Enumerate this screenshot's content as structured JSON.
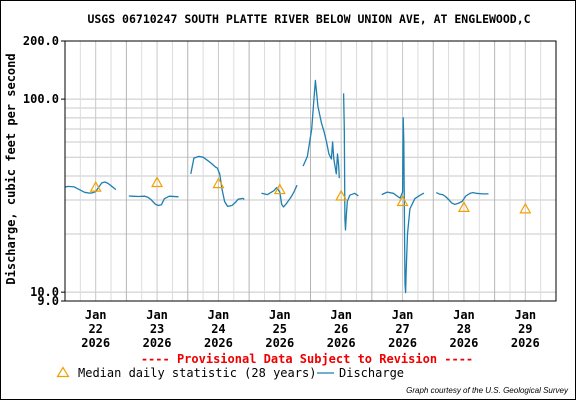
{
  "chart_data": {
    "type": "line",
    "title": "USGS 06710247 SOUTH PLATTE RIVER BELOW UNION AVE, AT ENGLEWOOD,C",
    "ylabel": "Discharge, cubic feet per second",
    "xlabel": "",
    "yscale": "log",
    "ylim": [
      9.0,
      200.0
    ],
    "y_tick_labels": [
      {
        "value": 200.0,
        "label": "200.0"
      },
      {
        "value": 100.0,
        "label": "100.0"
      },
      {
        "value": 10.0,
        "label": "10.0"
      },
      {
        "value": 9.0,
        "label": "9.0"
      }
    ],
    "xlim_days": [
      21.5,
      29.5
    ],
    "x_tick_labels": [
      {
        "day": 22,
        "lines": [
          "Jan",
          "22",
          "2026"
        ]
      },
      {
        "day": 23,
        "lines": [
          "Jan",
          "23",
          "2026"
        ]
      },
      {
        "day": 24,
        "lines": [
          "Jan",
          "24",
          "2026"
        ]
      },
      {
        "day": 25,
        "lines": [
          "Jan",
          "25",
          "2026"
        ]
      },
      {
        "day": 26,
        "lines": [
          "Jan",
          "26",
          "2026"
        ]
      },
      {
        "day": 27,
        "lines": [
          "Jan",
          "27",
          "2026"
        ]
      },
      {
        "day": 28,
        "lines": [
          "Jan",
          "28",
          "2026"
        ]
      },
      {
        "day": 29,
        "lines": [
          "Jan",
          "29",
          "2026"
        ]
      }
    ],
    "grid": true,
    "provisional_note": "---- Provisional Data Subject to Revision ----",
    "legend": {
      "placement": "bottom",
      "median_label": "Median daily statistic (28 years)",
      "discharge_label": "Discharge"
    },
    "credit": "Graph courtesy of the U.S. Geological Survey",
    "colors": {
      "discharge": "#1f7fb0",
      "median": "#f0a000",
      "provisional": "#ee0000",
      "grid": "#c8c8c8"
    },
    "median_series": [
      {
        "day": 22,
        "value": 35
      },
      {
        "day": 23,
        "value": 37
      },
      {
        "day": 24,
        "value": 36.5
      },
      {
        "day": 25,
        "value": 34
      },
      {
        "day": 26,
        "value": 31.5
      },
      {
        "day": 27,
        "value": 29.5
      },
      {
        "day": 28,
        "value": 27.5
      },
      {
        "day": 29,
        "value": 27
      }
    ],
    "discharge_segments": [
      [
        [
          21.5,
          35
        ],
        [
          21.55,
          35.3
        ],
        [
          21.65,
          35.1
        ],
        [
          21.75,
          33.8
        ],
        [
          21.82,
          32.9
        ],
        [
          21.9,
          32.6
        ],
        [
          21.95,
          32.7
        ],
        [
          22.0,
          33.2
        ],
        [
          22.05,
          35
        ],
        [
          22.1,
          36.8
        ],
        [
          22.15,
          37.2
        ],
        [
          22.2,
          36.6
        ],
        [
          22.25,
          35.6
        ],
        [
          22.33,
          34
        ]
      ],
      [
        [
          22.54,
          31.5
        ],
        [
          22.6,
          31.4
        ],
        [
          22.7,
          31.3
        ],
        [
          22.8,
          31.4
        ],
        [
          22.85,
          31
        ],
        [
          22.9,
          30.2
        ],
        [
          22.97,
          28.6
        ],
        [
          23.02,
          28.1
        ],
        [
          23.07,
          28.4
        ],
        [
          23.12,
          30.5
        ],
        [
          23.2,
          31.4
        ],
        [
          23.35,
          31.2
        ]
      ],
      [
        [
          23.55,
          41
        ],
        [
          23.6,
          49.5
        ],
        [
          23.68,
          50.5
        ],
        [
          23.75,
          50
        ],
        [
          23.82,
          48.2
        ],
        [
          23.88,
          46.6
        ],
        [
          23.95,
          44.5
        ],
        [
          23.98,
          44
        ],
        [
          24.02,
          41
        ],
        [
          24.06,
          34
        ],
        [
          24.1,
          29.5
        ],
        [
          24.15,
          27.8
        ],
        [
          24.22,
          28.1
        ],
        [
          24.28,
          29.2
        ],
        [
          24.32,
          30.3
        ],
        [
          24.4,
          30.6
        ],
        [
          24.42,
          30.2
        ]
      ],
      [
        [
          24.7,
          32.5
        ],
        [
          24.8,
          32
        ],
        [
          24.9,
          33.5
        ],
        [
          24.95,
          34.8
        ],
        [
          25.0,
          33
        ],
        [
          25.03,
          28.5
        ],
        [
          25.06,
          27.6
        ],
        [
          25.1,
          28.6
        ],
        [
          25.18,
          31
        ],
        [
          25.23,
          33
        ],
        [
          25.28,
          35.8
        ]
      ],
      [
        [
          25.38,
          45
        ],
        [
          25.45,
          50.5
        ],
        [
          25.52,
          70
        ],
        [
          25.55,
          95
        ],
        [
          25.58,
          125
        ],
        [
          25.62,
          92
        ],
        [
          25.68,
          75
        ],
        [
          25.72,
          68
        ],
        [
          25.76,
          60
        ],
        [
          25.8,
          52
        ],
        [
          25.84,
          49
        ],
        [
          25.86,
          60
        ],
        [
          25.88,
          49
        ],
        [
          25.9,
          45
        ],
        [
          25.92,
          41
        ],
        [
          25.94,
          52
        ],
        [
          25.96,
          45
        ],
        [
          25.97,
          39
        ]
      ],
      [
        [
          26.04,
          107
        ],
        [
          26.05,
          70
        ],
        [
          26.06,
          24
        ],
        [
          26.07,
          21
        ],
        [
          26.08,
          24
        ],
        [
          26.1,
          29.5
        ],
        [
          26.14,
          31.8
        ],
        [
          26.22,
          32.5
        ],
        [
          26.28,
          31.5
        ]
      ],
      [
        [
          26.66,
          32
        ],
        [
          26.75,
          33
        ],
        [
          26.85,
          32.5
        ],
        [
          26.92,
          31.3
        ],
        [
          26.96,
          30.7
        ],
        [
          27.0,
          33
        ],
        [
          27.01,
          80
        ],
        [
          27.02,
          60
        ],
        [
          27.03,
          25
        ],
        [
          27.04,
          11
        ],
        [
          27.05,
          9.95
        ],
        [
          27.06,
          13
        ],
        [
          27.08,
          20
        ],
        [
          27.12,
          27
        ],
        [
          27.2,
          30.5
        ],
        [
          27.28,
          31.7
        ],
        [
          27.35,
          32.6
        ]
      ],
      [
        [
          27.55,
          32.8
        ],
        [
          27.6,
          32.2
        ],
        [
          27.65,
          32
        ],
        [
          27.7,
          31.3
        ],
        [
          27.75,
          30.2
        ],
        [
          27.8,
          29
        ],
        [
          27.85,
          28.5
        ],
        [
          27.9,
          28.8
        ],
        [
          27.97,
          29.5
        ],
        [
          28.03,
          31.5
        ],
        [
          28.1,
          32.5
        ],
        [
          28.15,
          32.8
        ],
        [
          28.2,
          32.5
        ],
        [
          28.3,
          32.3
        ],
        [
          28.4,
          32.3
        ]
      ]
    ]
  }
}
